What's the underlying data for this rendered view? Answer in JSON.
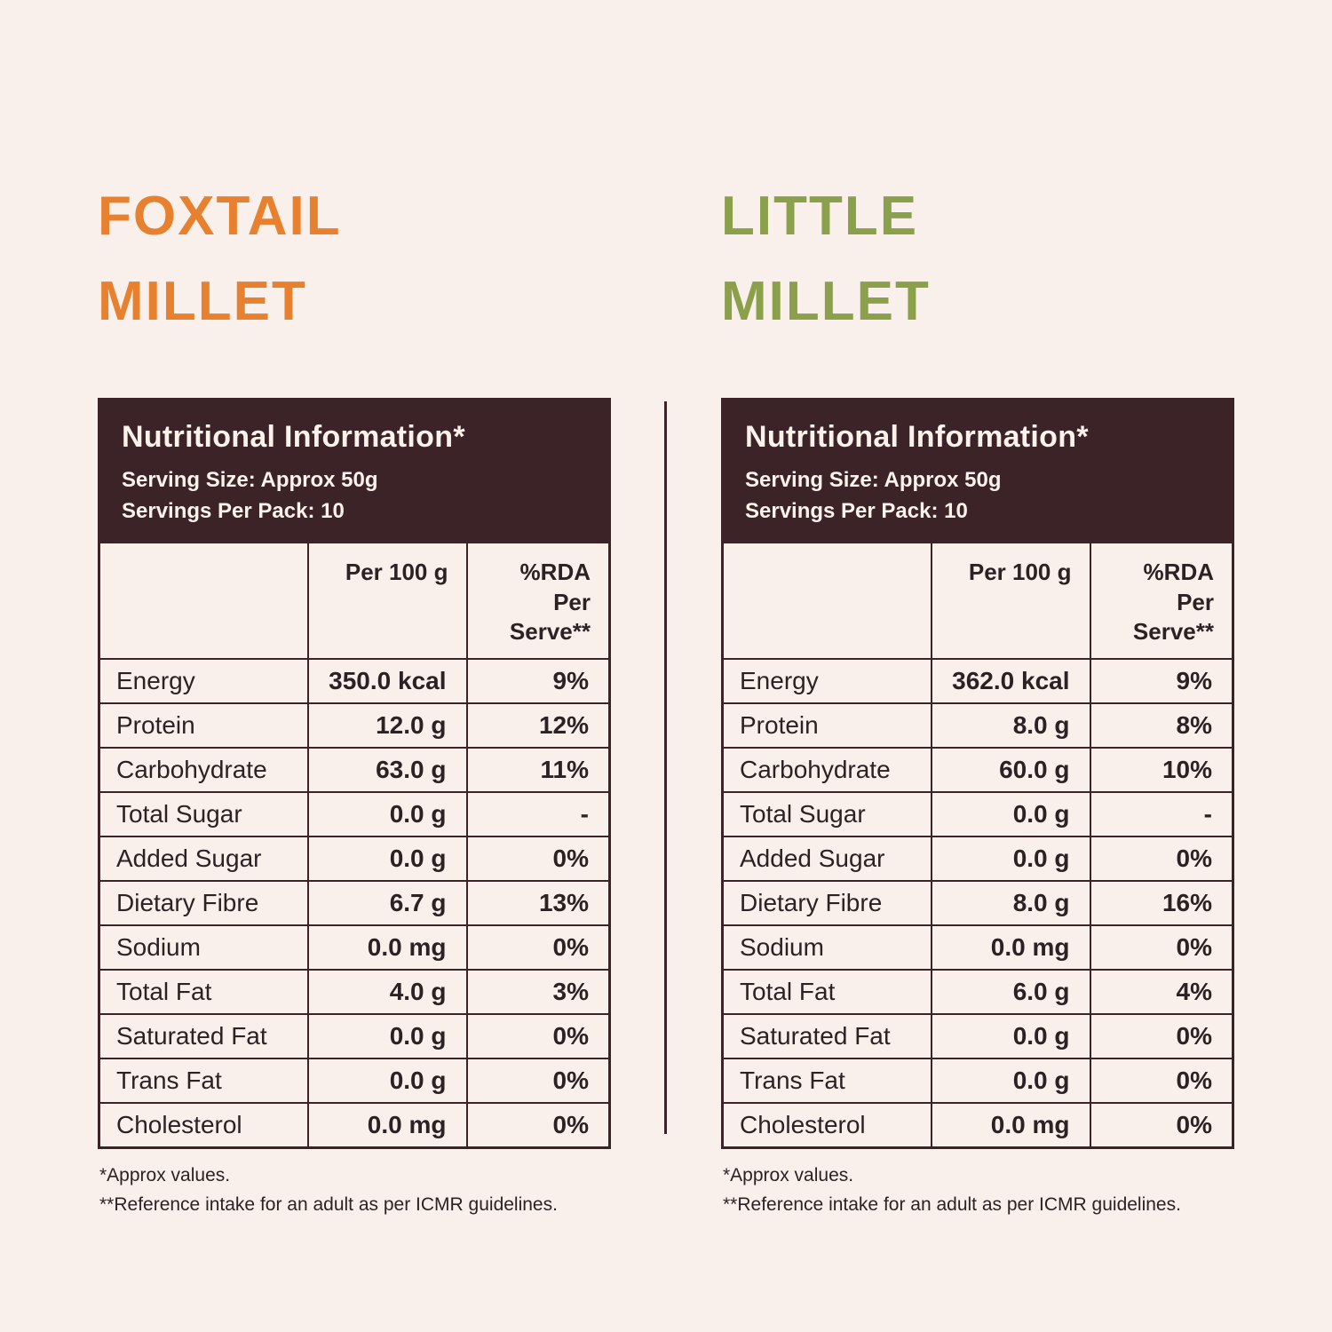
{
  "page": {
    "background_color": "#FAF0EB",
    "divider_color": "#3B2327",
    "header_bg_color": "#3B2327",
    "header_text_color": "#FBF2EC"
  },
  "panels": [
    {
      "id": "foxtail-millet",
      "title_line1": "FOXTAIL",
      "title_line2": "MILLET",
      "title_color": "#E8812F",
      "header": {
        "title": "Nutritional Information*",
        "serving_size": "Serving Size: Approx 50g",
        "servings_per_pack": "Servings Per Pack: 10"
      },
      "columns": {
        "per100": "Per 100 g",
        "rda": "%RDA Per Serve**"
      },
      "rows": [
        {
          "label": "Energy",
          "per100": "350.0 kcal",
          "rda": "9%"
        },
        {
          "label": "Protein",
          "per100": "12.0 g",
          "rda": "12%"
        },
        {
          "label": "Carbohydrate",
          "per100": "63.0 g",
          "rda": "11%"
        },
        {
          "label": "Total Sugar",
          "per100": "0.0 g",
          "rda": "-"
        },
        {
          "label": "Added Sugar",
          "per100": "0.0 g",
          "rda": "0%"
        },
        {
          "label": "Dietary Fibre",
          "per100": "6.7 g",
          "rda": "13%"
        },
        {
          "label": "Sodium",
          "per100": "0.0 mg",
          "rda": "0%"
        },
        {
          "label": "Total Fat",
          "per100": "4.0 g",
          "rda": "3%"
        },
        {
          "label": "Saturated Fat",
          "per100": "0.0 g",
          "rda": "0%"
        },
        {
          "label": "Trans Fat",
          "per100": "0.0 g",
          "rda": "0%"
        },
        {
          "label": "Cholesterol",
          "per100": "0.0 mg",
          "rda": "0%"
        }
      ],
      "footnote1": "*Approx values.",
      "footnote2": "**Reference intake for an adult as per ICMR guidelines."
    },
    {
      "id": "little-millet",
      "title_line1": "LITTLE",
      "title_line2": "MILLET",
      "title_color": "#8BA04B",
      "header": {
        "title": "Nutritional Information*",
        "serving_size": "Serving Size: Approx 50g",
        "servings_per_pack": "Servings Per Pack: 10"
      },
      "columns": {
        "per100": "Per 100 g",
        "rda": "%RDA Per Serve**"
      },
      "rows": [
        {
          "label": "Energy",
          "per100": "362.0 kcal",
          "rda": "9%"
        },
        {
          "label": "Protein",
          "per100": "8.0 g",
          "rda": "8%"
        },
        {
          "label": "Carbohydrate",
          "per100": "60.0 g",
          "rda": "10%"
        },
        {
          "label": "Total Sugar",
          "per100": "0.0 g",
          "rda": "-"
        },
        {
          "label": "Added Sugar",
          "per100": "0.0 g",
          "rda": "0%"
        },
        {
          "label": "Dietary Fibre",
          "per100": "8.0 g",
          "rda": "16%"
        },
        {
          "label": "Sodium",
          "per100": "0.0 mg",
          "rda": "0%"
        },
        {
          "label": "Total Fat",
          "per100": "6.0 g",
          "rda": "4%"
        },
        {
          "label": "Saturated Fat",
          "per100": "0.0 g",
          "rda": "0%"
        },
        {
          "label": "Trans Fat",
          "per100": "0.0 g",
          "rda": "0%"
        },
        {
          "label": "Cholesterol",
          "per100": "0.0 mg",
          "rda": "0%"
        }
      ],
      "footnote1": "*Approx values.",
      "footnote2": "**Reference intake for an adult as per ICMR guidelines."
    }
  ]
}
